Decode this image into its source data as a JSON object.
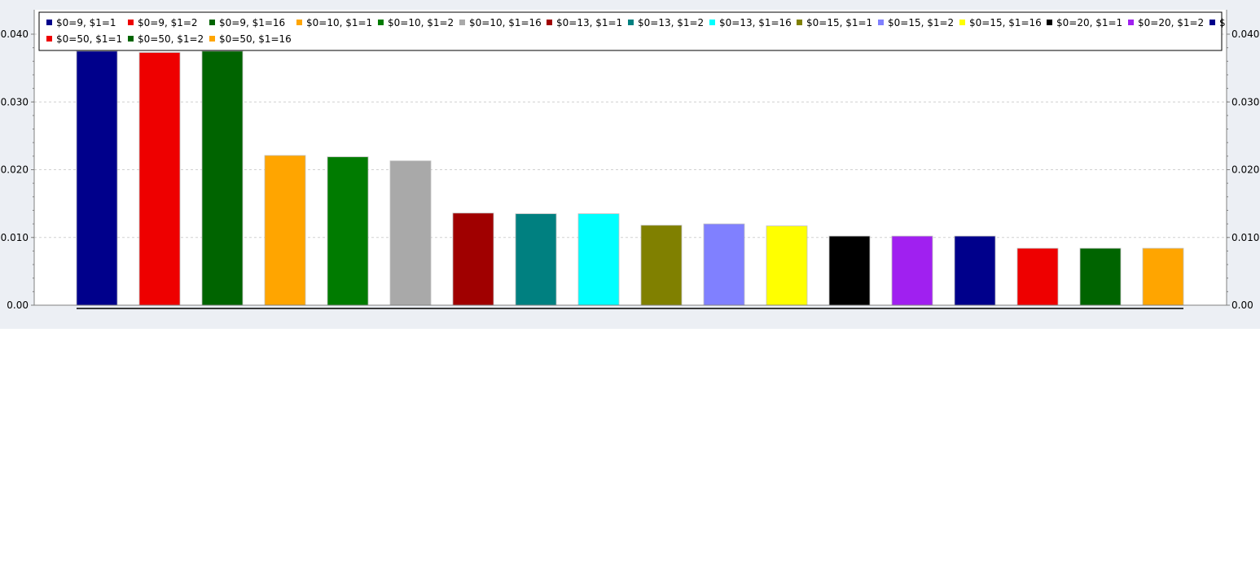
{
  "chart_data": {
    "type": "bar",
    "title": "",
    "xlabel": "",
    "ylabel": "",
    "ylim": [
      0,
      0.04
    ],
    "yticks": [
      "0.00",
      "0.010",
      "0.020",
      "0.030",
      "0.040"
    ],
    "ytick_values": [
      0,
      0.01,
      0.02,
      0.03,
      0.04
    ],
    "grid": true,
    "legend_position": "top",
    "series": [
      {
        "name": "$0=9, $1=1",
        "value": 0.0375,
        "color": "#00008b"
      },
      {
        "name": "$0=9, $1=2",
        "value": 0.0373,
        "color": "#ee0000"
      },
      {
        "name": "$0=9, $1=16",
        "value": 0.0375,
        "color": "#006400"
      },
      {
        "name": "$0=10, $1=1",
        "value": 0.0221,
        "color": "#ffa500"
      },
      {
        "name": "$0=10, $1=2",
        "value": 0.0219,
        "color": "#007b00"
      },
      {
        "name": "$0=10, $1=16",
        "value": 0.0213,
        "color": "#a9a9a9"
      },
      {
        "name": "$0=13, $1=1",
        "value": 0.0136,
        "color": "#a00000"
      },
      {
        "name": "$0=13, $1=2",
        "value": 0.0135,
        "color": "#008080"
      },
      {
        "name": "$0=13, $1=16",
        "value": 0.0135,
        "color": "#00ffff"
      },
      {
        "name": "$0=15, $1=1",
        "value": 0.0118,
        "color": "#808000"
      },
      {
        "name": "$0=15, $1=2",
        "value": 0.012,
        "color": "#8080ff"
      },
      {
        "name": "$0=15, $1=16",
        "value": 0.0117,
        "color": "#ffff00"
      },
      {
        "name": "$0=20, $1=1",
        "value": 0.0102,
        "color": "#000000"
      },
      {
        "name": "$0=20, $1=2",
        "value": 0.0102,
        "color": "#a020f0"
      },
      {
        "name": "$",
        "value": 0.0102,
        "color": "#00008b"
      },
      {
        "name": "$0=50, $1=1",
        "value": 0.0084,
        "color": "#ee0000"
      },
      {
        "name": "$0=50, $1=2",
        "value": 0.0084,
        "color": "#006400"
      },
      {
        "name": "$0=50, $1=16",
        "value": 0.0084,
        "color": "#ffa500"
      }
    ]
  }
}
